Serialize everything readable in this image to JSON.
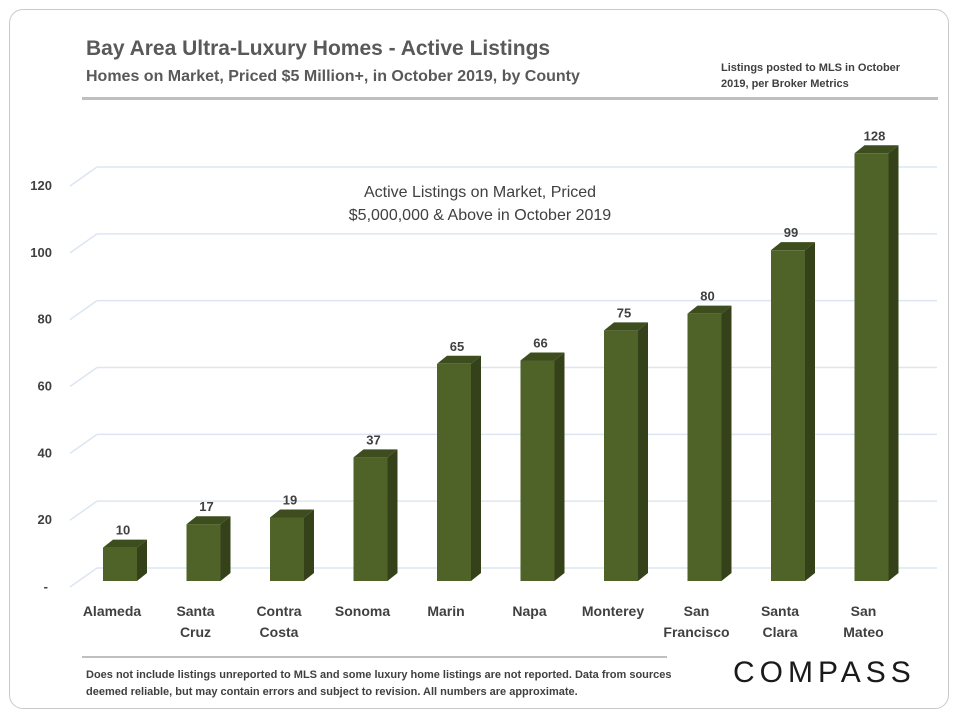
{
  "header": {
    "title": "Bay Area Ultra-Luxury Homes - Active Listings",
    "subtitle": "Homes on Market,  Priced $5 Million+,  in October 2019, by County",
    "note": "Listings posted to MLS in October 2019, per Broker Metrics"
  },
  "footer": {
    "footnote": "Does not include listings unreported to MLS and some luxury home listings are not reported. Data from sources deemed reliable, but may contain errors and subject to revision. All numbers are approximate.",
    "logo": "COMPASS"
  },
  "colors": {
    "bar_front": "#4f6228",
    "bar_side": "#344119",
    "bar_top": "#3d4d1e",
    "grid": "#dce6f2"
  },
  "chart_data": {
    "type": "bar",
    "title": "Active Listings on Market, Priced $5,000,000 & Above in October 2019",
    "annotation_lines": [
      "Active Listings on Market, Priced",
      "$5,000,000 & Above in October 2019"
    ],
    "categories": [
      [
        "Alameda"
      ],
      [
        "Santa",
        "Cruz"
      ],
      [
        "Contra",
        "Costa"
      ],
      [
        "Sonoma"
      ],
      [
        "Marin"
      ],
      [
        "Napa"
      ],
      [
        "Monterey"
      ],
      [
        "San",
        "Francisco"
      ],
      [
        "Santa",
        "Clara"
      ],
      [
        "San",
        "Mateo"
      ]
    ],
    "values": [
      10,
      17,
      19,
      37,
      65,
      66,
      75,
      80,
      99,
      128
    ],
    "ylim": [
      0,
      140
    ],
    "yticks": [
      0,
      20,
      40,
      60,
      80,
      100,
      120
    ],
    "ytick_labels": [
      "-",
      "20",
      "40",
      "60",
      "80",
      "100",
      "120"
    ],
    "xlabel": "",
    "ylabel": ""
  }
}
